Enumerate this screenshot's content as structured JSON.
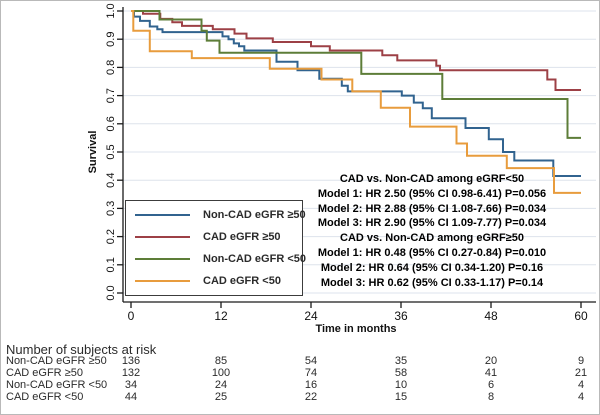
{
  "chart_data": {
    "type": "line",
    "subtype": "kaplan-meier-step",
    "title": "",
    "xlabel": "Time in months",
    "ylabel": "Survival",
    "xlim": [
      0,
      60
    ],
    "ylim": [
      0.0,
      1.0
    ],
    "xticks": [
      0,
      12,
      24,
      36,
      48,
      60
    ],
    "yticks": [
      "0.0",
      "0.1",
      "0.2",
      "0.3",
      "0.4",
      "0.5",
      "0.6",
      "0.7",
      "0.8",
      "0.9",
      "1.0"
    ],
    "grid": "horizontal",
    "legend_position": "inside-lower-left",
    "colors": {
      "grid": "#dde3ec",
      "axis": "#1a1a1a"
    },
    "series": [
      {
        "name": "Non-CAD eGFR ≥50",
        "color": "#31638f",
        "points": [
          [
            0,
            1.0
          ],
          [
            0.4,
            0.98
          ],
          [
            1.2,
            0.965
          ],
          [
            2.5,
            0.945
          ],
          [
            3.5,
            0.935
          ],
          [
            4.2,
            0.925
          ],
          [
            12.2,
            0.91
          ],
          [
            13,
            0.9
          ],
          [
            13.7,
            0.885
          ],
          [
            14.4,
            0.875
          ],
          [
            15.1,
            0.86
          ],
          [
            19.4,
            0.82
          ],
          [
            22.2,
            0.79
          ],
          [
            25.1,
            0.76
          ],
          [
            28.1,
            0.735
          ],
          [
            28.9,
            0.715
          ],
          [
            36.1,
            0.7
          ],
          [
            37.7,
            0.675
          ],
          [
            38.9,
            0.655
          ],
          [
            40.1,
            0.62
          ],
          [
            44.6,
            0.585
          ],
          [
            47.7,
            0.545
          ],
          [
            49.6,
            0.5
          ],
          [
            51.1,
            0.47
          ],
          [
            56.3,
            0.415
          ],
          [
            60,
            0.415
          ]
        ]
      },
      {
        "name": "CAD eGFR ≥50",
        "color": "#9d4046",
        "points": [
          [
            0,
            1.0
          ],
          [
            1.6,
            0.99
          ],
          [
            3.9,
            0.972
          ],
          [
            5.5,
            0.96
          ],
          [
            6.8,
            0.947
          ],
          [
            10.9,
            0.935
          ],
          [
            13.8,
            0.92
          ],
          [
            15.4,
            0.903
          ],
          [
            18.9,
            0.89
          ],
          [
            24,
            0.875
          ],
          [
            26.5,
            0.86
          ],
          [
            33.5,
            0.843
          ],
          [
            35.5,
            0.825
          ],
          [
            40.7,
            0.806
          ],
          [
            41.2,
            0.79
          ],
          [
            55.5,
            0.757
          ],
          [
            56.6,
            0.72
          ],
          [
            60,
            0.72
          ]
        ]
      },
      {
        "name": "Non-CAD eGFR <50",
        "color": "#5d7d38",
        "points": [
          [
            0,
            1.0
          ],
          [
            3.8,
            0.97
          ],
          [
            9.4,
            0.93
          ],
          [
            10.1,
            0.895
          ],
          [
            11.8,
            0.852
          ],
          [
            30.7,
            0.777
          ],
          [
            41.5,
            0.688
          ],
          [
            58.2,
            0.55
          ],
          [
            60,
            0.55
          ]
        ]
      },
      {
        "name": "CAD eGFR <50",
        "color": "#e89c3d",
        "points": [
          [
            0,
            1.0
          ],
          [
            0.3,
            0.93
          ],
          [
            2.5,
            0.857
          ],
          [
            8.1,
            0.833
          ],
          [
            18.5,
            0.795
          ],
          [
            25.4,
            0.757
          ],
          [
            29.5,
            0.715
          ],
          [
            33.3,
            0.657
          ],
          [
            37.2,
            0.59
          ],
          [
            43.4,
            0.53
          ],
          [
            44.8,
            0.487
          ],
          [
            50.1,
            0.443
          ],
          [
            56.4,
            0.355
          ],
          [
            60,
            0.355
          ]
        ]
      }
    ]
  },
  "legend": {
    "items": [
      {
        "label": "Non-CAD eGFR ≥50",
        "color": "#31638f"
      },
      {
        "label": "CAD eGFR ≥50",
        "color": "#9d4046"
      },
      {
        "label": "Non-CAD eGFR <50",
        "color": "#5d7d38"
      },
      {
        "label": "CAD eGFR <50",
        "color": "#e89c3d"
      }
    ]
  },
  "annotation": {
    "lines": [
      "CAD vs. Non-CAD among eGRF<50",
      "Model 1: HR 2.50 (95% CI 0.98-6.41) P=0.056",
      "Model 2: HR 2.88 (95% CI 1.08-7.66) P=0.034",
      "Model 3: HR 2.90 (95% CI 1.09-7.77) P=0.034",
      "CAD vs. Non-CAD among eGRF≥50",
      "Model 1: HR 0.48 (95% CI 0.27-0.84) P=0.010",
      "Model 2: HR 0.64 (95% CI 0.34-1.20) P=0.16",
      "Model 3: HR 0.62 (95% CI 0.33-1.17) P=0.14"
    ]
  },
  "risk_table": {
    "title": "Number of subjects at risk",
    "time_points": [
      0,
      12,
      24,
      36,
      48,
      60
    ],
    "rows": [
      {
        "label": "Non-CAD eGFR ≥50",
        "counts": [
          136,
          85,
          54,
          35,
          20,
          9
        ]
      },
      {
        "label": "CAD eGFR ≥50",
        "counts": [
          132,
          100,
          74,
          58,
          41,
          21
        ]
      },
      {
        "label": "Non-CAD eGFR <50",
        "counts": [
          34,
          24,
          16,
          10,
          6,
          4
        ]
      },
      {
        "label": "CAD eGFR <50",
        "counts": [
          44,
          25,
          22,
          15,
          8,
          4
        ]
      }
    ]
  }
}
